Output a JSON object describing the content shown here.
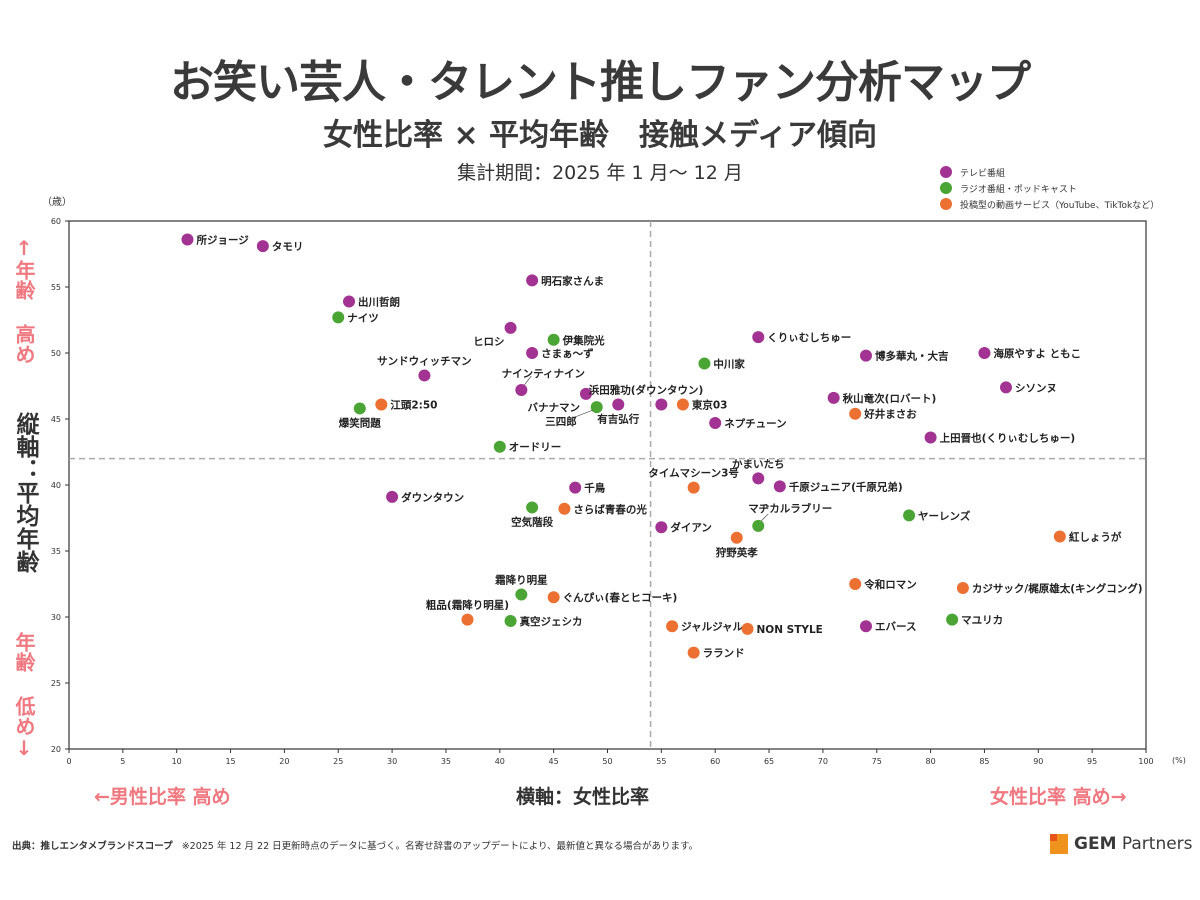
{
  "header": {
    "title": "お笑い芸人・タレント推しファン分析マップ",
    "subtitle": "女性比率 × 平均年齢　接触メディア傾向",
    "period": "集計期間：2025 年 1 月～ 12 月"
  },
  "axes_labels": {
    "y_unit": "（歳）",
    "x_unit": "(%)",
    "y_high": "↑年齢 高め",
    "y_title": "縦軸：平均年齢",
    "y_low": "年齢 低め↓",
    "x_title": "横軸：女性比率",
    "x_low": "←男性比率 高め",
    "x_high": "女性比率 高め→"
  },
  "footer": {
    "source_label": "出典：推しエンタメブランドスコープ",
    "note": "※2025 年 12 月 22 日更新時点のデータに基づく。名寄せ辞書のアップデートにより、最新値と異なる場合があります。",
    "logo_bold": "GEM",
    "logo_rest": " Partners"
  },
  "colors": {
    "tv": "#a23393",
    "radio": "#4aa535",
    "video": "#ec7032",
    "pink_label": "#f07880",
    "axis": "#333333",
    "guide": "#aaaaaa"
  },
  "chart_data": {
    "type": "scatter",
    "title": "お笑い芸人・タレント推しファン分析マップ",
    "xlabel": "横軸：女性比率",
    "ylabel": "縦軸：平均年齢",
    "xlim": [
      0,
      100
    ],
    "ylim": [
      20,
      60
    ],
    "x_ticks": [
      0,
      5,
      10,
      15,
      20,
      25,
      30,
      35,
      40,
      45,
      50,
      55,
      60,
      65,
      70,
      75,
      80,
      85,
      90,
      95,
      100
    ],
    "y_ticks": [
      20,
      25,
      30,
      35,
      40,
      45,
      50,
      55,
      60
    ],
    "grid": false,
    "reference_lines": {
      "x": 54,
      "y": 42
    },
    "legend_position": "top-right",
    "legend": [
      {
        "key": "tv",
        "label": "テレビ番組"
      },
      {
        "key": "radio",
        "label": "ラジオ番組・ポッドキャスト"
      },
      {
        "key": "video",
        "label": "投稿型の動画サービス（YouTube、TikTokなど）"
      }
    ],
    "points": [
      {
        "name": "所ジョージ",
        "x": 11,
        "y": 58.6,
        "media": "tv",
        "lp": "r"
      },
      {
        "name": "タモリ",
        "x": 18,
        "y": 58.1,
        "media": "tv",
        "lp": "r"
      },
      {
        "name": "明石家さんま",
        "x": 43,
        "y": 55.5,
        "media": "tv",
        "lp": "r"
      },
      {
        "name": "出川哲朗",
        "x": 26,
        "y": 53.9,
        "media": "tv",
        "lp": "r"
      },
      {
        "name": "ナイツ",
        "x": 25,
        "y": 52.7,
        "media": "radio",
        "lp": "r"
      },
      {
        "name": "ヒロシ",
        "x": 41,
        "y": 51.9,
        "media": "tv",
        "lp": "bl"
      },
      {
        "name": "伊集院光",
        "x": 45,
        "y": 51.0,
        "media": "radio",
        "lp": "r"
      },
      {
        "name": "さまぁ～ず",
        "x": 43,
        "y": 50.0,
        "media": "tv",
        "lp": "r"
      },
      {
        "name": "サンドウィッチマン",
        "x": 33,
        "y": 48.3,
        "media": "tv",
        "lp": "t"
      },
      {
        "name": "ナインティナイン",
        "x": 42,
        "y": 47.2,
        "media": "tv",
        "lp": "tr"
      },
      {
        "name": "バナナマン",
        "x": 48,
        "y": 46.9,
        "media": "tv",
        "lp": "bl"
      },
      {
        "name": "三四郎",
        "x": 49,
        "y": 45.9,
        "media": "radio",
        "lp": "bll"
      },
      {
        "name": "有吉弘行",
        "x": 51,
        "y": 46.1,
        "media": "tv",
        "lp": "b"
      },
      {
        "name": "浜田雅功(ダウンタウン)",
        "x": 55,
        "y": 46.1,
        "media": "tv",
        "lp": "tl"
      },
      {
        "name": "東京03",
        "x": 57,
        "y": 46.1,
        "media": "video",
        "lp": "r"
      },
      {
        "name": "江頭2:50",
        "x": 29,
        "y": 46.1,
        "media": "video",
        "lp": "r"
      },
      {
        "name": "爆笑問題",
        "x": 27,
        "y": 45.8,
        "media": "radio",
        "lp": "b"
      },
      {
        "name": "オードリー",
        "x": 40,
        "y": 42.9,
        "media": "radio",
        "lp": "r"
      },
      {
        "name": "くりぃむしちゅー",
        "x": 64,
        "y": 51.2,
        "media": "tv",
        "lp": "r"
      },
      {
        "name": "中川家",
        "x": 59,
        "y": 49.2,
        "media": "radio",
        "lp": "r"
      },
      {
        "name": "博多華丸・大吉",
        "x": 74,
        "y": 49.8,
        "media": "tv",
        "lp": "r"
      },
      {
        "name": "海原やすよ ともこ",
        "x": 85,
        "y": 50.0,
        "media": "tv",
        "lp": "r"
      },
      {
        "name": "シソンヌ",
        "x": 87,
        "y": 47.4,
        "media": "tv",
        "lp": "r"
      },
      {
        "name": "秋山竜次(ロバート)",
        "x": 71,
        "y": 46.6,
        "media": "tv",
        "lp": "r"
      },
      {
        "name": "好井まさお",
        "x": 73,
        "y": 45.4,
        "media": "video",
        "lp": "r"
      },
      {
        "name": "ネプチューン",
        "x": 60,
        "y": 44.7,
        "media": "tv",
        "lp": "r"
      },
      {
        "name": "上田晋也(くりぃむしちゅー)",
        "x": 80,
        "y": 43.6,
        "media": "tv",
        "lp": "r"
      },
      {
        "name": "ダウンタウン",
        "x": 30,
        "y": 39.1,
        "media": "tv",
        "lp": "r"
      },
      {
        "name": "千鳥",
        "x": 47,
        "y": 39.8,
        "media": "tv",
        "lp": "r"
      },
      {
        "name": "空気階段",
        "x": 43,
        "y": 38.3,
        "media": "radio",
        "lp": "b"
      },
      {
        "name": "さらば青春の光",
        "x": 46,
        "y": 38.2,
        "media": "video",
        "lp": "r"
      },
      {
        "name": "タイムマシーン3号",
        "x": 58,
        "y": 39.8,
        "media": "video",
        "lp": "t"
      },
      {
        "name": "かまいたち",
        "x": 64,
        "y": 40.5,
        "media": "tv",
        "lp": "t"
      },
      {
        "name": "千原ジュニア(千原兄弟)",
        "x": 66,
        "y": 39.9,
        "media": "tv",
        "lp": "r"
      },
      {
        "name": "ダイアン",
        "x": 55,
        "y": 36.8,
        "media": "tv",
        "lp": "r"
      },
      {
        "name": "マヂカルラブリー",
        "x": 64,
        "y": 36.9,
        "media": "radio",
        "lp": "tr2"
      },
      {
        "name": "狩野英孝",
        "x": 62,
        "y": 36.0,
        "media": "video",
        "lp": "b"
      },
      {
        "name": "ヤーレンズ",
        "x": 78,
        "y": 37.7,
        "media": "radio",
        "lp": "r"
      },
      {
        "name": "紅しょうが",
        "x": 92,
        "y": 36.1,
        "media": "video",
        "lp": "r"
      },
      {
        "name": "令和ロマン",
        "x": 73,
        "y": 32.5,
        "media": "video",
        "lp": "r"
      },
      {
        "name": "カジサック/梶原雄太(キングコング)",
        "x": 83,
        "y": 32.2,
        "media": "video",
        "lp": "r"
      },
      {
        "name": "マユリカ",
        "x": 82,
        "y": 29.8,
        "media": "radio",
        "lp": "r"
      },
      {
        "name": "エバース",
        "x": 74,
        "y": 29.3,
        "media": "tv",
        "lp": "r"
      },
      {
        "name": "霜降り明星",
        "x": 42,
        "y": 31.7,
        "media": "radio",
        "lp": "t"
      },
      {
        "name": "ぐんぴぃ(春とヒコーキ)",
        "x": 45,
        "y": 31.5,
        "media": "video",
        "lp": "r"
      },
      {
        "name": "粗品(霜降り明星)",
        "x": 37,
        "y": 29.8,
        "media": "video",
        "lp": "t"
      },
      {
        "name": "真空ジェシカ",
        "x": 41,
        "y": 29.7,
        "media": "radio",
        "lp": "r"
      },
      {
        "name": "ジャルジャル",
        "x": 56,
        "y": 29.3,
        "media": "video",
        "lp": "r"
      },
      {
        "name": "NON STYLE",
        "x": 63,
        "y": 29.1,
        "media": "video",
        "lp": "r"
      },
      {
        "name": "ラランド",
        "x": 58,
        "y": 27.3,
        "media": "video",
        "lp": "r"
      }
    ]
  }
}
